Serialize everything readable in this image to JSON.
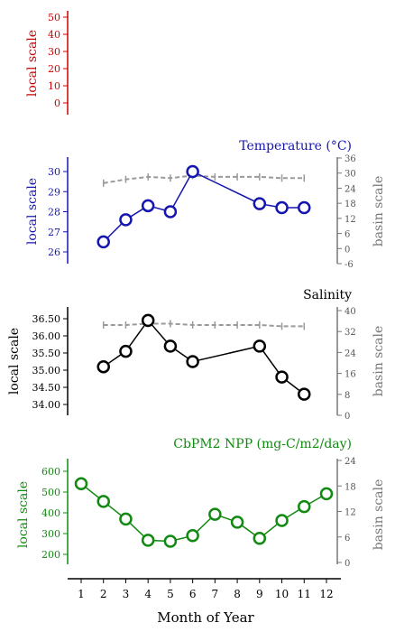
{
  "chart_data": [
    {
      "type": "line",
      "id": "blank",
      "title": "",
      "ylabel": "local scale",
      "color": "#cc0000",
      "ylim": [
        -5,
        55
      ],
      "yticks": [
        "50",
        "40",
        "30",
        "20",
        "10",
        "0"
      ],
      "series": []
    },
    {
      "type": "line",
      "id": "temperature",
      "title": "Temperature (°C)",
      "ylabel": "local scale",
      "y2label": "basin scale",
      "color": "#1515b0",
      "ylim": [
        25.5,
        30.3
      ],
      "yticks": [
        "30",
        "29",
        "28",
        "27",
        "26"
      ],
      "y2lim": [
        -6,
        36
      ],
      "y2ticks": [
        "36",
        "30",
        "24",
        "18",
        "12",
        "6",
        "0",
        "-6"
      ],
      "series": [
        {
          "axis": "local",
          "x": [
            2,
            3,
            4,
            5,
            6,
            9,
            10,
            11
          ],
          "y": [
            26.5,
            27.6,
            28.3,
            28.0,
            30.0,
            28.4,
            28.2,
            28.2
          ]
        },
        {
          "axis": "basin",
          "x": [
            2,
            3,
            4,
            5,
            6,
            7,
            8,
            9,
            10,
            11
          ],
          "y": [
            26,
            27.5,
            28.5,
            28,
            29,
            28.5,
            28.5,
            28.5,
            28,
            28
          ]
        }
      ]
    },
    {
      "type": "line",
      "id": "salinity",
      "title": "Salinity",
      "ylabel": "local scale",
      "y2label": "basin scale",
      "color": "#000000",
      "ylim": [
        33.8,
        36.6
      ],
      "yticks": [
        "36.50",
        "36.00",
        "35.50",
        "35.00",
        "34.50",
        "34.00"
      ],
      "y2lim": [
        0,
        40
      ],
      "y2ticks": [
        "40",
        "32",
        "24",
        "16",
        "8",
        "0"
      ],
      "series": [
        {
          "axis": "local",
          "x": [
            2,
            3,
            4,
            5,
            6,
            9,
            10,
            11
          ],
          "y": [
            35.1,
            35.55,
            36.45,
            35.7,
            35.25,
            35.7,
            34.8,
            34.3
          ]
        },
        {
          "axis": "basin",
          "x": [
            2,
            3,
            4,
            5,
            6,
            7,
            8,
            9,
            10,
            11
          ],
          "y": [
            34.5,
            34.5,
            35,
            35,
            34.5,
            34.5,
            34.5,
            34.5,
            34,
            34
          ]
        }
      ]
    },
    {
      "type": "line",
      "id": "npp",
      "title": "CbPM2 NPP (mg-C/m2/day)",
      "ylabel": "local scale",
      "y2label": "basin scale",
      "color": "#118a11",
      "ylim": [
        150,
        660
      ],
      "yticks": [
        "600",
        "500",
        "400",
        "300",
        "200"
      ],
      "y2lim": [
        0,
        24
      ],
      "y2ticks": [
        "24",
        "18",
        "12",
        "6",
        "0"
      ],
      "xlabel": "Month of Year",
      "categories": [
        "1",
        "2",
        "3",
        "4",
        "5",
        "6",
        "7",
        "8",
        "9",
        "10",
        "11",
        "12"
      ],
      "series": [
        {
          "axis": "local",
          "x": [
            1,
            2,
            3,
            4,
            5,
            6,
            7,
            8,
            9,
            10,
            11,
            12
          ],
          "y": [
            540,
            455,
            370,
            268,
            263,
            290,
            393,
            355,
            277,
            363,
            430,
            492
          ]
        }
      ]
    }
  ]
}
